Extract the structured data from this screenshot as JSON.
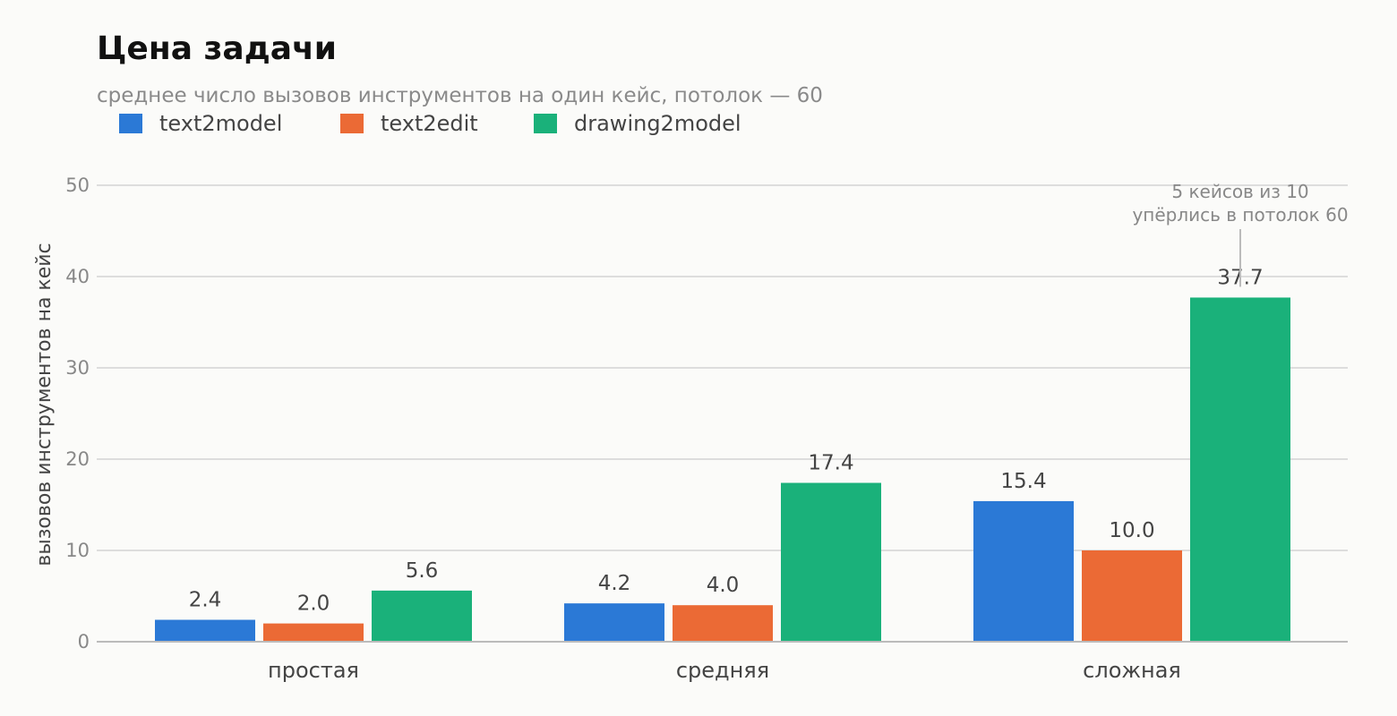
{
  "chart_data": {
    "type": "bar",
    "title": "Цена задачи",
    "subtitle": "среднее число вызовов инструментов на один кейс, потолок — 60",
    "ylabel": "вызовов инструментов на кейс",
    "xlabel": "",
    "ylim": [
      0,
      50
    ],
    "yticks": [
      0,
      10,
      20,
      30,
      40,
      50
    ],
    "grid": true,
    "legend_position": "top-left",
    "categories": [
      "простая",
      "средняя",
      "сложная"
    ],
    "series": [
      {
        "name": "text2model",
        "color": "#2b79d6",
        "values": [
          2.4,
          4.2,
          15.4
        ],
        "labels": [
          "2.4",
          "4.2",
          "15.4"
        ]
      },
      {
        "name": "text2edit",
        "color": "#eb6a35",
        "values": [
          2.0,
          4.0,
          10.0
        ],
        "labels": [
          "2.0",
          "4.0",
          "10.0"
        ]
      },
      {
        "name": "drawing2model",
        "color": "#1ab17a",
        "values": [
          5.6,
          17.4,
          37.7
        ],
        "labels": [
          "5.6",
          "17.4",
          "37.7"
        ]
      }
    ],
    "annotation": {
      "lines": [
        "5 кейсов из 10",
        "упёрлись в потолок 60"
      ],
      "category": "сложная",
      "series": "drawing2model"
    }
  }
}
